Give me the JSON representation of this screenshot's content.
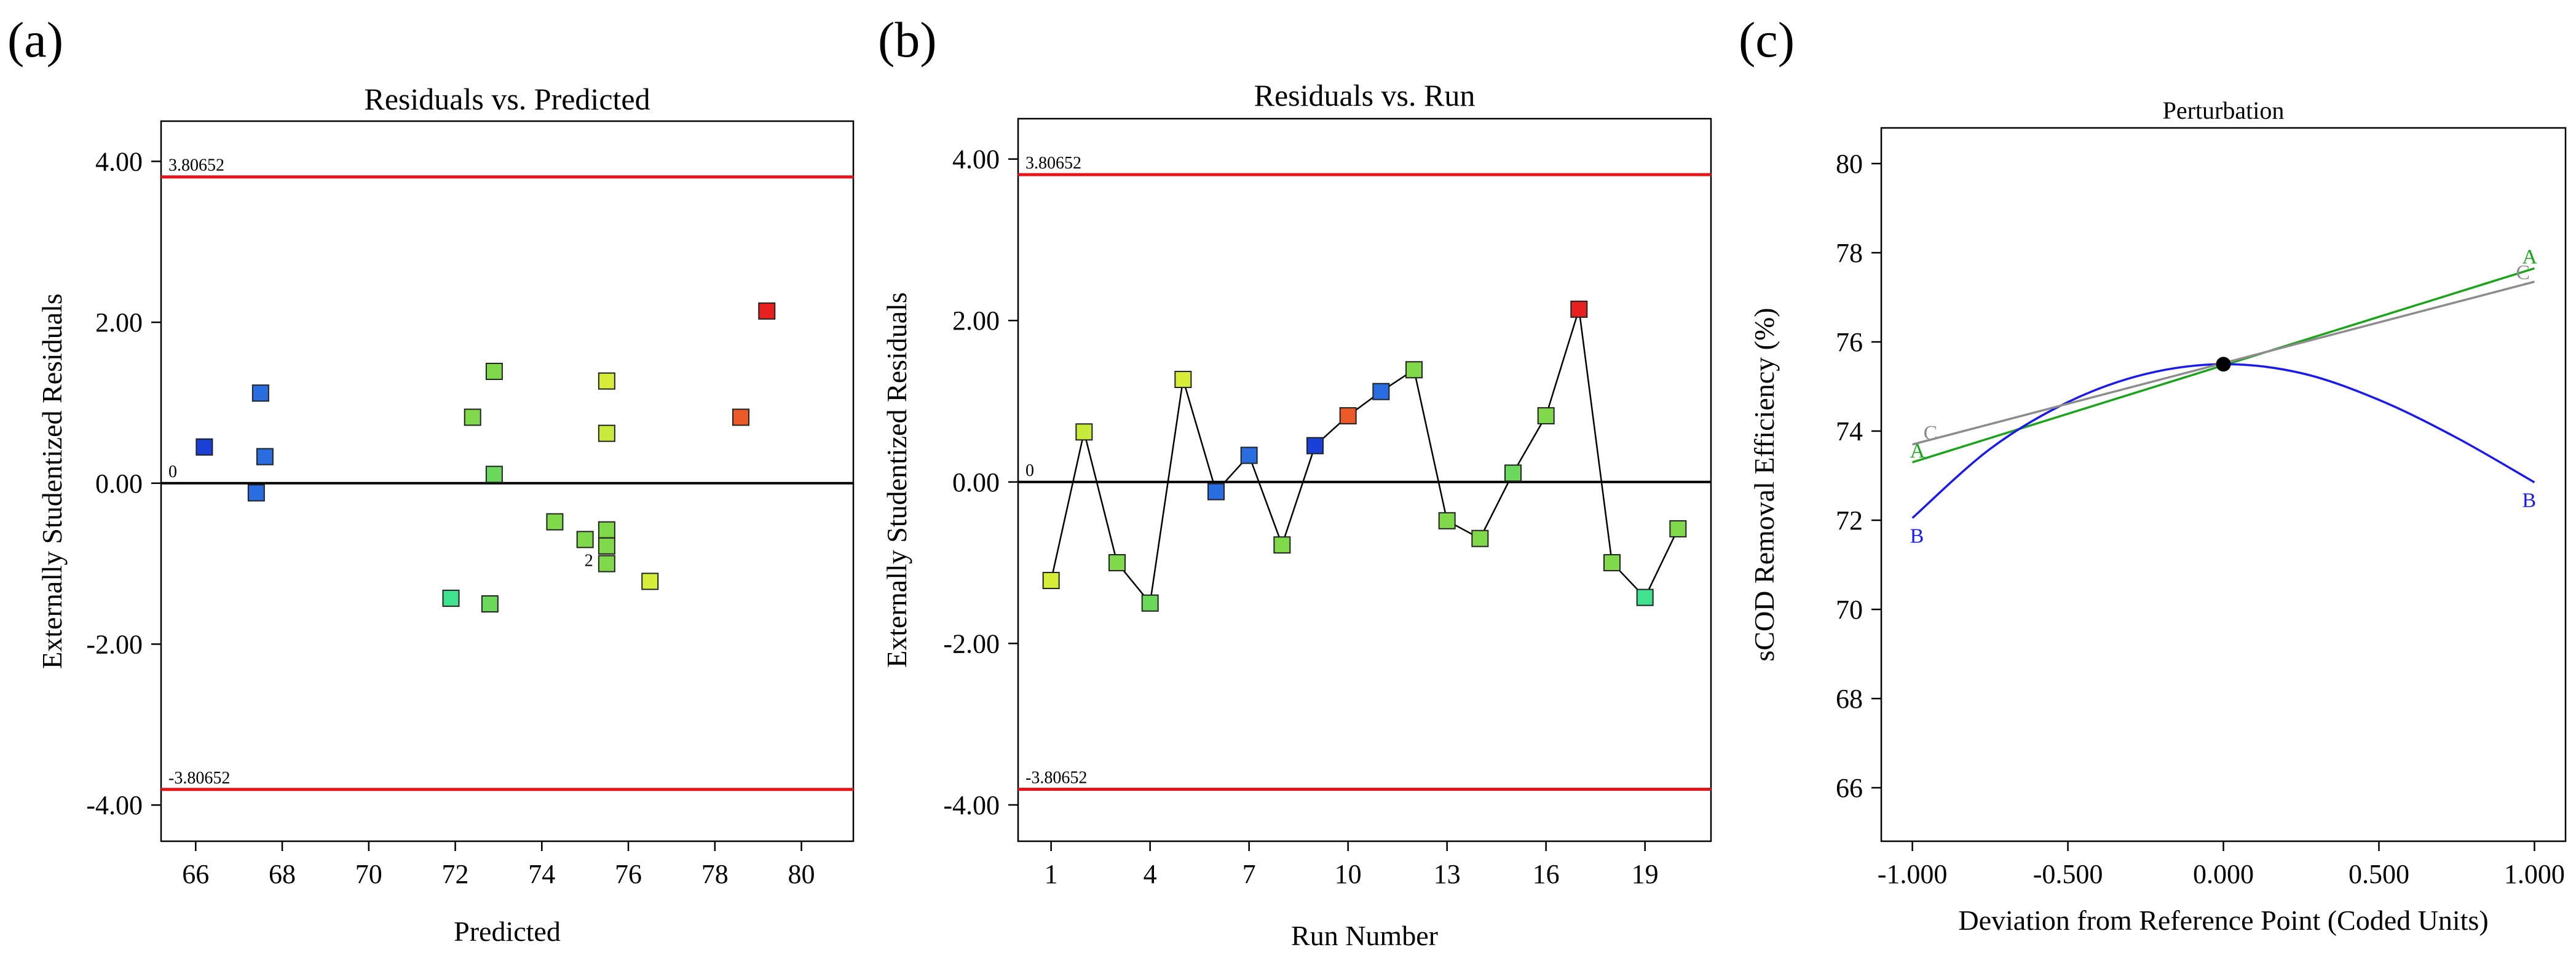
{
  "panels": {
    "a": {
      "label": "(a)"
    },
    "b": {
      "label": "(b)"
    },
    "c": {
      "label": "(c)"
    }
  },
  "chart_data": [
    {
      "id": "a",
      "type": "scatter",
      "title": "Residuals vs. Predicted",
      "xlabel": "Predicted",
      "ylabel": "Externally Studentized Residuals",
      "xlim": [
        65.2,
        81.2
      ],
      "ylim": [
        -4.45,
        4.5
      ],
      "xticks": [
        66,
        68,
        70,
        72,
        74,
        76,
        78,
        80
      ],
      "xtick_labels": [
        "66",
        "68",
        "70",
        "72",
        "74",
        "76",
        "78",
        "80"
      ],
      "yticks": [
        4.0,
        2.0,
        0.0,
        -2.0,
        -4.0
      ],
      "ytick_labels": [
        "4.00",
        "2.00",
        "0.00",
        "-2.00",
        "-4.00"
      ],
      "reference_lines": [
        {
          "value": 3.80652,
          "label": "3.80652",
          "color": "#e8141c"
        },
        {
          "value": 0,
          "label": "0",
          "color": "#000000"
        },
        {
          "value": -3.80652,
          "label": "-3.80652",
          "color": "#e8141c"
        }
      ],
      "annotations": [
        {
          "x": 75.3,
          "y": -1.0,
          "text": "2"
        }
      ],
      "points": [
        {
          "x": 66.2,
          "y": 0.45,
          "color": "#1a3fd6"
        },
        {
          "x": 67.5,
          "y": 1.12,
          "color": "#2a6de0"
        },
        {
          "x": 67.6,
          "y": 0.33,
          "color": "#2a6de0"
        },
        {
          "x": 67.4,
          "y": -0.12,
          "color": "#2a6de0"
        },
        {
          "x": 72.4,
          "y": 0.82,
          "color": "#7fd94a"
        },
        {
          "x": 72.9,
          "y": 1.39,
          "color": "#7fd94a"
        },
        {
          "x": 72.9,
          "y": 0.11,
          "color": "#6ad85a"
        },
        {
          "x": 71.9,
          "y": -1.43,
          "color": "#3fe38f"
        },
        {
          "x": 72.8,
          "y": -1.5,
          "color": "#6ad85a"
        },
        {
          "x": 74.3,
          "y": -0.48,
          "color": "#7fd94a"
        },
        {
          "x": 75.0,
          "y": -0.7,
          "color": "#7fd94a"
        },
        {
          "x": 75.5,
          "y": -0.58,
          "color": "#7fd94a"
        },
        {
          "x": 75.5,
          "y": -0.78,
          "color": "#7fd94a"
        },
        {
          "x": 75.5,
          "y": -1.0,
          "color": "#7fd94a"
        },
        {
          "x": 75.5,
          "y": 1.27,
          "color": "#d6ee3a"
        },
        {
          "x": 75.5,
          "y": 0.62,
          "color": "#c8ea3c"
        },
        {
          "x": 76.5,
          "y": -1.22,
          "color": "#d6ee3a"
        },
        {
          "x": 78.6,
          "y": 0.82,
          "color": "#ec5a2a"
        },
        {
          "x": 79.2,
          "y": 2.14,
          "color": "#e82020"
        }
      ]
    },
    {
      "id": "b",
      "type": "line",
      "title": "Residuals vs. Run",
      "xlabel": "Run Number",
      "ylabel": "Externally Studentized Residuals",
      "xlim": [
        0,
        21
      ],
      "ylim": [
        -4.45,
        4.5
      ],
      "xticks": [
        1,
        4,
        7,
        10,
        13,
        16,
        19
      ],
      "xtick_labels": [
        "1",
        "4",
        "7",
        "10",
        "13",
        "16",
        "19"
      ],
      "yticks": [
        4.0,
        2.0,
        0.0,
        -2.0,
        -4.0
      ],
      "ytick_labels": [
        "4.00",
        "2.00",
        "0.00",
        "-2.00",
        "-4.00"
      ],
      "reference_lines": [
        {
          "value": 3.80652,
          "label": "3.80652",
          "color": "#e8141c"
        },
        {
          "value": 0,
          "label": "0",
          "color": "#000000"
        },
        {
          "value": -3.80652,
          "label": "-3.80652",
          "color": "#e8141c"
        }
      ],
      "x": [
        1,
        2,
        3,
        4,
        5,
        6,
        7,
        8,
        9,
        10,
        11,
        12,
        13,
        14,
        15,
        16,
        17,
        18,
        19,
        20
      ],
      "y": [
        -1.22,
        0.62,
        -1.0,
        -1.5,
        1.27,
        -0.12,
        0.33,
        -0.78,
        0.45,
        0.82,
        1.12,
        1.39,
        -0.48,
        -0.7,
        0.11,
        0.82,
        2.14,
        -1.0,
        -1.43,
        -0.58
      ],
      "colors": [
        "#d6ee3a",
        "#c8ea3c",
        "#7fd94a",
        "#6ad85a",
        "#d6ee3a",
        "#2a6de0",
        "#2a6de0",
        "#7fd94a",
        "#1a3fd6",
        "#ec5a2a",
        "#2a6de0",
        "#7fd94a",
        "#7fd94a",
        "#7fd94a",
        "#6ad85a",
        "#7fd94a",
        "#e82020",
        "#7fd94a",
        "#3fe38f",
        "#7fd94a"
      ]
    },
    {
      "id": "c",
      "type": "line",
      "title": "Perturbation",
      "xlabel": "Deviation from Reference Point (Coded Units)",
      "ylabel": "sCOD Removal Efficiency (%)",
      "xlim": [
        -1.1,
        1.1
      ],
      "ylim": [
        64.8,
        80.8
      ],
      "xticks": [
        -1.0,
        -0.5,
        0.0,
        0.5,
        1.0
      ],
      "xtick_labels": [
        "-1.000",
        "-0.500",
        "0.000",
        "0.500",
        "1.000"
      ],
      "yticks": [
        66,
        68,
        70,
        72,
        74,
        76,
        78,
        80
      ],
      "ytick_labels": [
        "66",
        "68",
        "70",
        "72",
        "74",
        "76",
        "78",
        "80"
      ],
      "reference_point": {
        "x": 0,
        "y": 75.5
      },
      "series": [
        {
          "name": "A",
          "color": "#1aa41a",
          "x": [
            -1,
            1
          ],
          "y": [
            73.3,
            77.65
          ]
        },
        {
          "name": "B",
          "color": "#1a1aee",
          "x": [
            -1.0,
            -0.75,
            -0.5,
            -0.25,
            0.0,
            0.25,
            0.5,
            0.75,
            1.0
          ],
          "y": [
            72.05,
            73.6,
            74.65,
            75.28,
            75.5,
            75.3,
            74.7,
            73.85,
            72.85
          ]
        },
        {
          "name": "C",
          "color": "#8c8c8c",
          "x": [
            -1,
            1
          ],
          "y": [
            73.7,
            77.35
          ]
        }
      ]
    }
  ]
}
